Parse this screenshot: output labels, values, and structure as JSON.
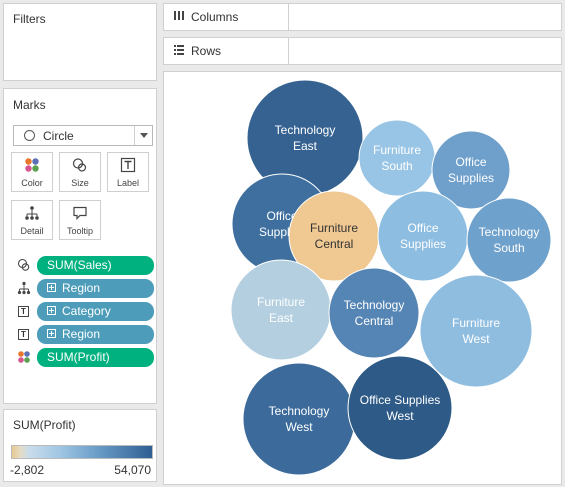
{
  "filters": {
    "title": "Filters"
  },
  "shelves": {
    "columns": {
      "label": "Columns",
      "icon": "columns-icon"
    },
    "rows": {
      "label": "Rows",
      "icon": "rows-icon"
    }
  },
  "marks": {
    "title": "Marks",
    "mark_type": "Circle",
    "buttons": [
      {
        "name": "color",
        "label": "Color",
        "icon": "color-icon"
      },
      {
        "name": "size",
        "label": "Size",
        "icon": "size-icon"
      },
      {
        "name": "label",
        "label": "Label",
        "icon": "label-icon"
      },
      {
        "name": "detail",
        "label": "Detail",
        "icon": "detail-icon"
      },
      {
        "name": "tooltip",
        "label": "Tooltip",
        "icon": "tooltip-icon"
      }
    ],
    "pills": [
      {
        "encoding": "size",
        "text": "SUM(Sales)",
        "kind": "measure"
      },
      {
        "encoding": "detail",
        "text": "Region",
        "kind": "dimension"
      },
      {
        "encoding": "label",
        "text": "Category",
        "kind": "dimension"
      },
      {
        "encoding": "label",
        "text": "Region",
        "kind": "dimension"
      },
      {
        "encoding": "color",
        "text": "SUM(Profit)",
        "kind": "measure"
      }
    ]
  },
  "legend": {
    "title": "SUM(Profit)",
    "min": "-2,802",
    "max": "54,070",
    "colors": {
      "low": "#e8c991",
      "mid": "#9ec5e2",
      "high": "#2f5f93"
    }
  },
  "chart_data": {
    "type": "packed-bubble",
    "size_measure": "SUM(Sales)",
    "color_measure": "SUM(Profit)",
    "color_range": [
      -2802,
      54070
    ],
    "bubbles": [
      {
        "category": "Technology",
        "region": "East",
        "label": "Technology East",
        "color": "#356290"
      },
      {
        "category": "Furniture",
        "region": "South",
        "label": "Furniture South",
        "color": "#98c5e5"
      },
      {
        "category": "Office Supplies",
        "region": "South",
        "label": "Office Supplies",
        "color": "#6fa0cb"
      },
      {
        "category": "Office Supplies",
        "region": "Central",
        "label": "Office Supplies",
        "color": "#3e6f9e"
      },
      {
        "category": "Furniture",
        "region": "Central",
        "label": "Furniture Central",
        "color": "#efc892"
      },
      {
        "category": "Office Supplies",
        "region": "East",
        "label": "Office Supplies",
        "color": "#8dbde0"
      },
      {
        "category": "Technology",
        "region": "South",
        "label": "Technology South",
        "color": "#6fa1cd"
      },
      {
        "category": "Furniture",
        "region": "East",
        "label": "Furniture East",
        "color": "#b4cfe0"
      },
      {
        "category": "Technology",
        "region": "Central",
        "label": "Technology Central",
        "color": "#5585b4"
      },
      {
        "category": "Furniture",
        "region": "West",
        "label": "Furniture West",
        "color": "#8fbde0"
      },
      {
        "category": "Technology",
        "region": "West",
        "label": "Technology West",
        "color": "#3b6a9b"
      },
      {
        "category": "Office Supplies",
        "region": "West",
        "label": "Office Supplies West",
        "color": "#2e5a87"
      }
    ]
  }
}
